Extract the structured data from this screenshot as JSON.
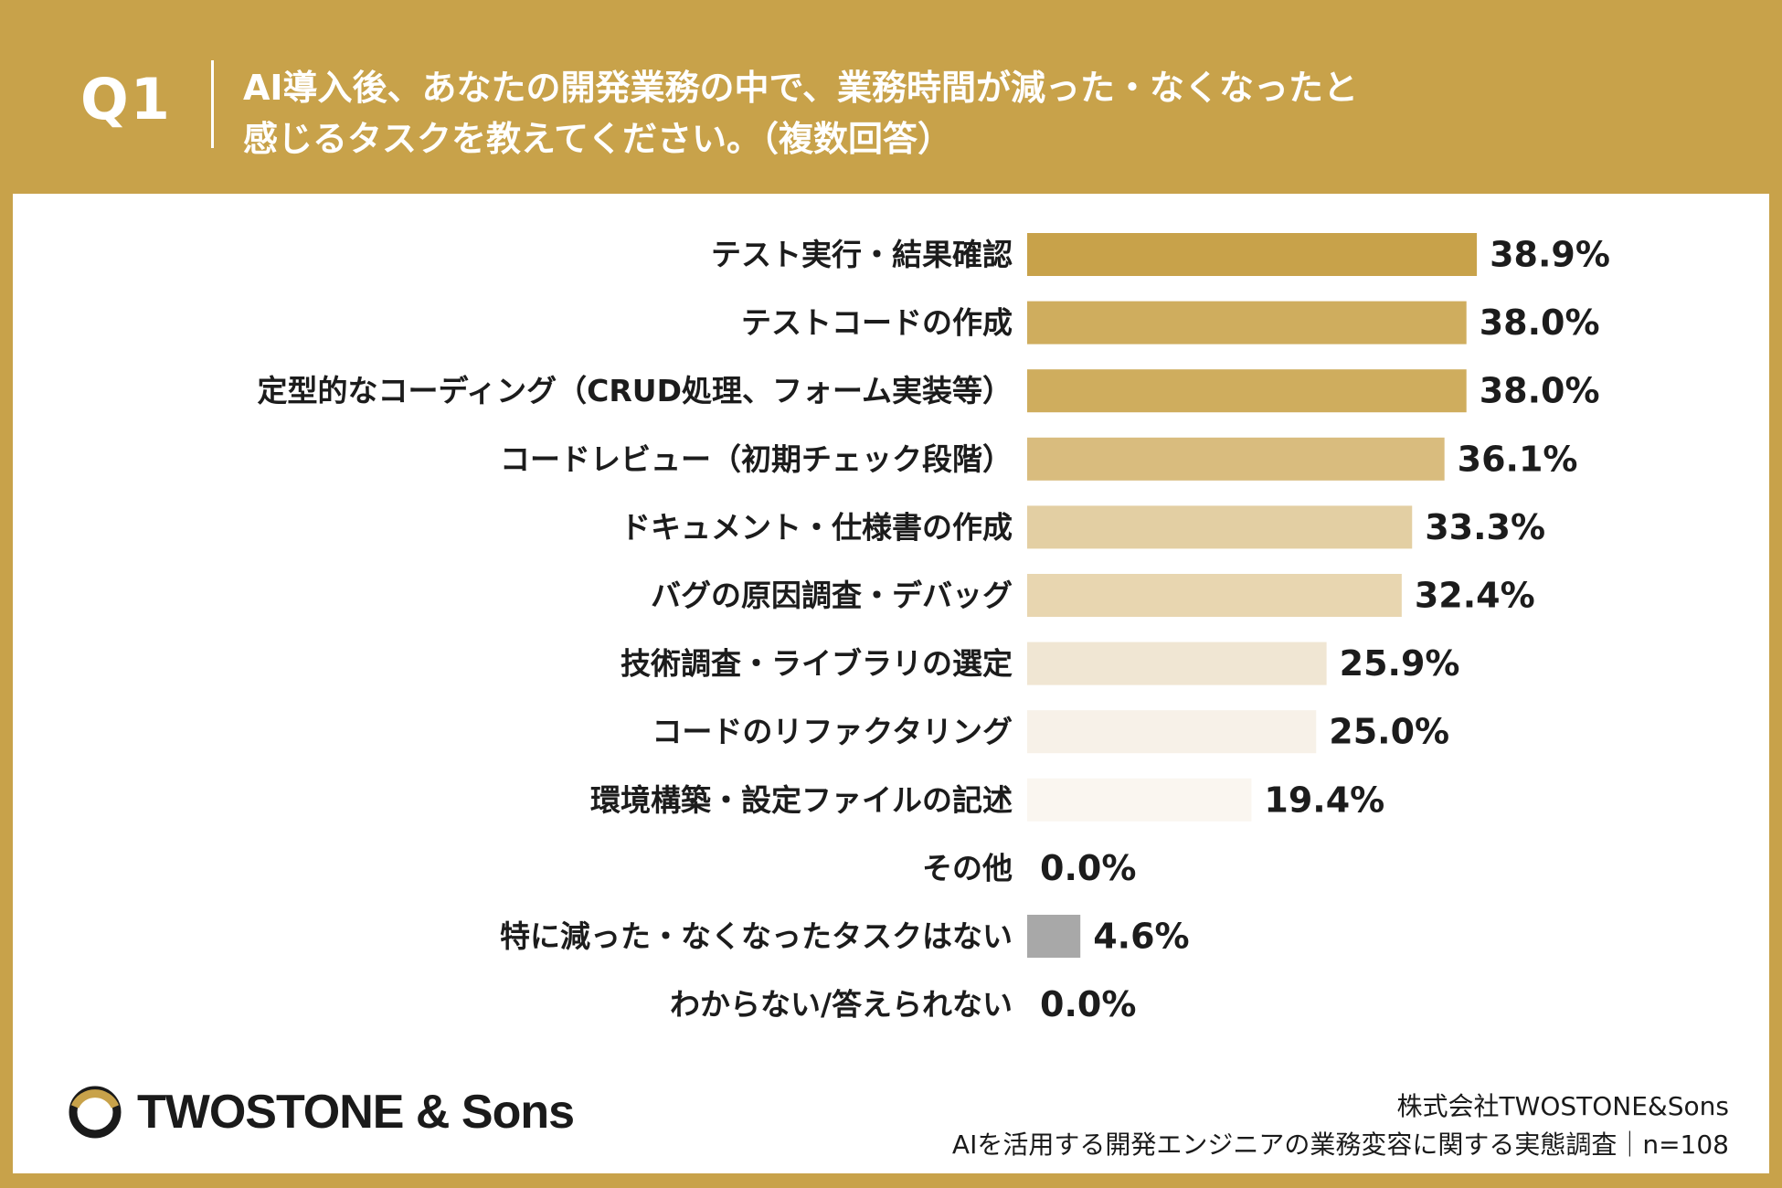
{
  "header": {
    "question_number": "Q1",
    "question_line1": "AI導入後、あなたの開発業務の中で、業務時間が減った・なくなったと",
    "question_line2": "感じるタスクを教えてください。（複数回答）"
  },
  "chart_data": {
    "type": "bar",
    "orientation": "horizontal",
    "categories": [
      "テスト実行・結果確認",
      "テストコードの作成",
      "定型的なコーディング（CRUD処理、フォーム実装等）",
      "コードレビュー（初期チェック段階）",
      "ドキュメント・仕様書の作成",
      "バグの原因調査・デバッグ",
      "技術調査・ライブラリの選定",
      "コードのリファクタリング",
      "環境構築・設定ファイルの記述",
      "その他",
      "特に減った・なくなったタスクはない",
      "わからない/答えられない"
    ],
    "values": [
      38.9,
      38.0,
      38.0,
      36.1,
      33.3,
      32.4,
      25.9,
      25.0,
      19.4,
      0.0,
      4.6,
      0.0
    ],
    "value_labels": [
      "38.9%",
      "38.0%",
      "38.0%",
      "36.1%",
      "33.3%",
      "32.4%",
      "25.9%",
      "25.0%",
      "19.4%",
      "0.0%",
      "4.6%",
      "0.0%"
    ],
    "colors": [
      "#C8A24A",
      "#CFAD5E",
      "#CFAD5E",
      "#D9BC7E",
      "#E3CFA3",
      "#E8D6B0",
      "#F0E6D3",
      "#F7F1E8",
      "#FAF6F0",
      "#FAF6F0",
      "#A8A8A8",
      "#FAF6F0"
    ],
    "xlim": [
      0,
      100
    ],
    "grid": false,
    "legend": "none"
  },
  "footer": {
    "logo_text": "TWOSTONE & Sons",
    "company": "株式会社TWOSTONE&Sons",
    "survey": "AIを活用する開発エンジニアの業務変容に関する実態調査｜n=108"
  },
  "colors": {
    "brand_gold": "#C8A24A",
    "panel_background": "#FFFFFF",
    "text": "#1C1C1C"
  }
}
